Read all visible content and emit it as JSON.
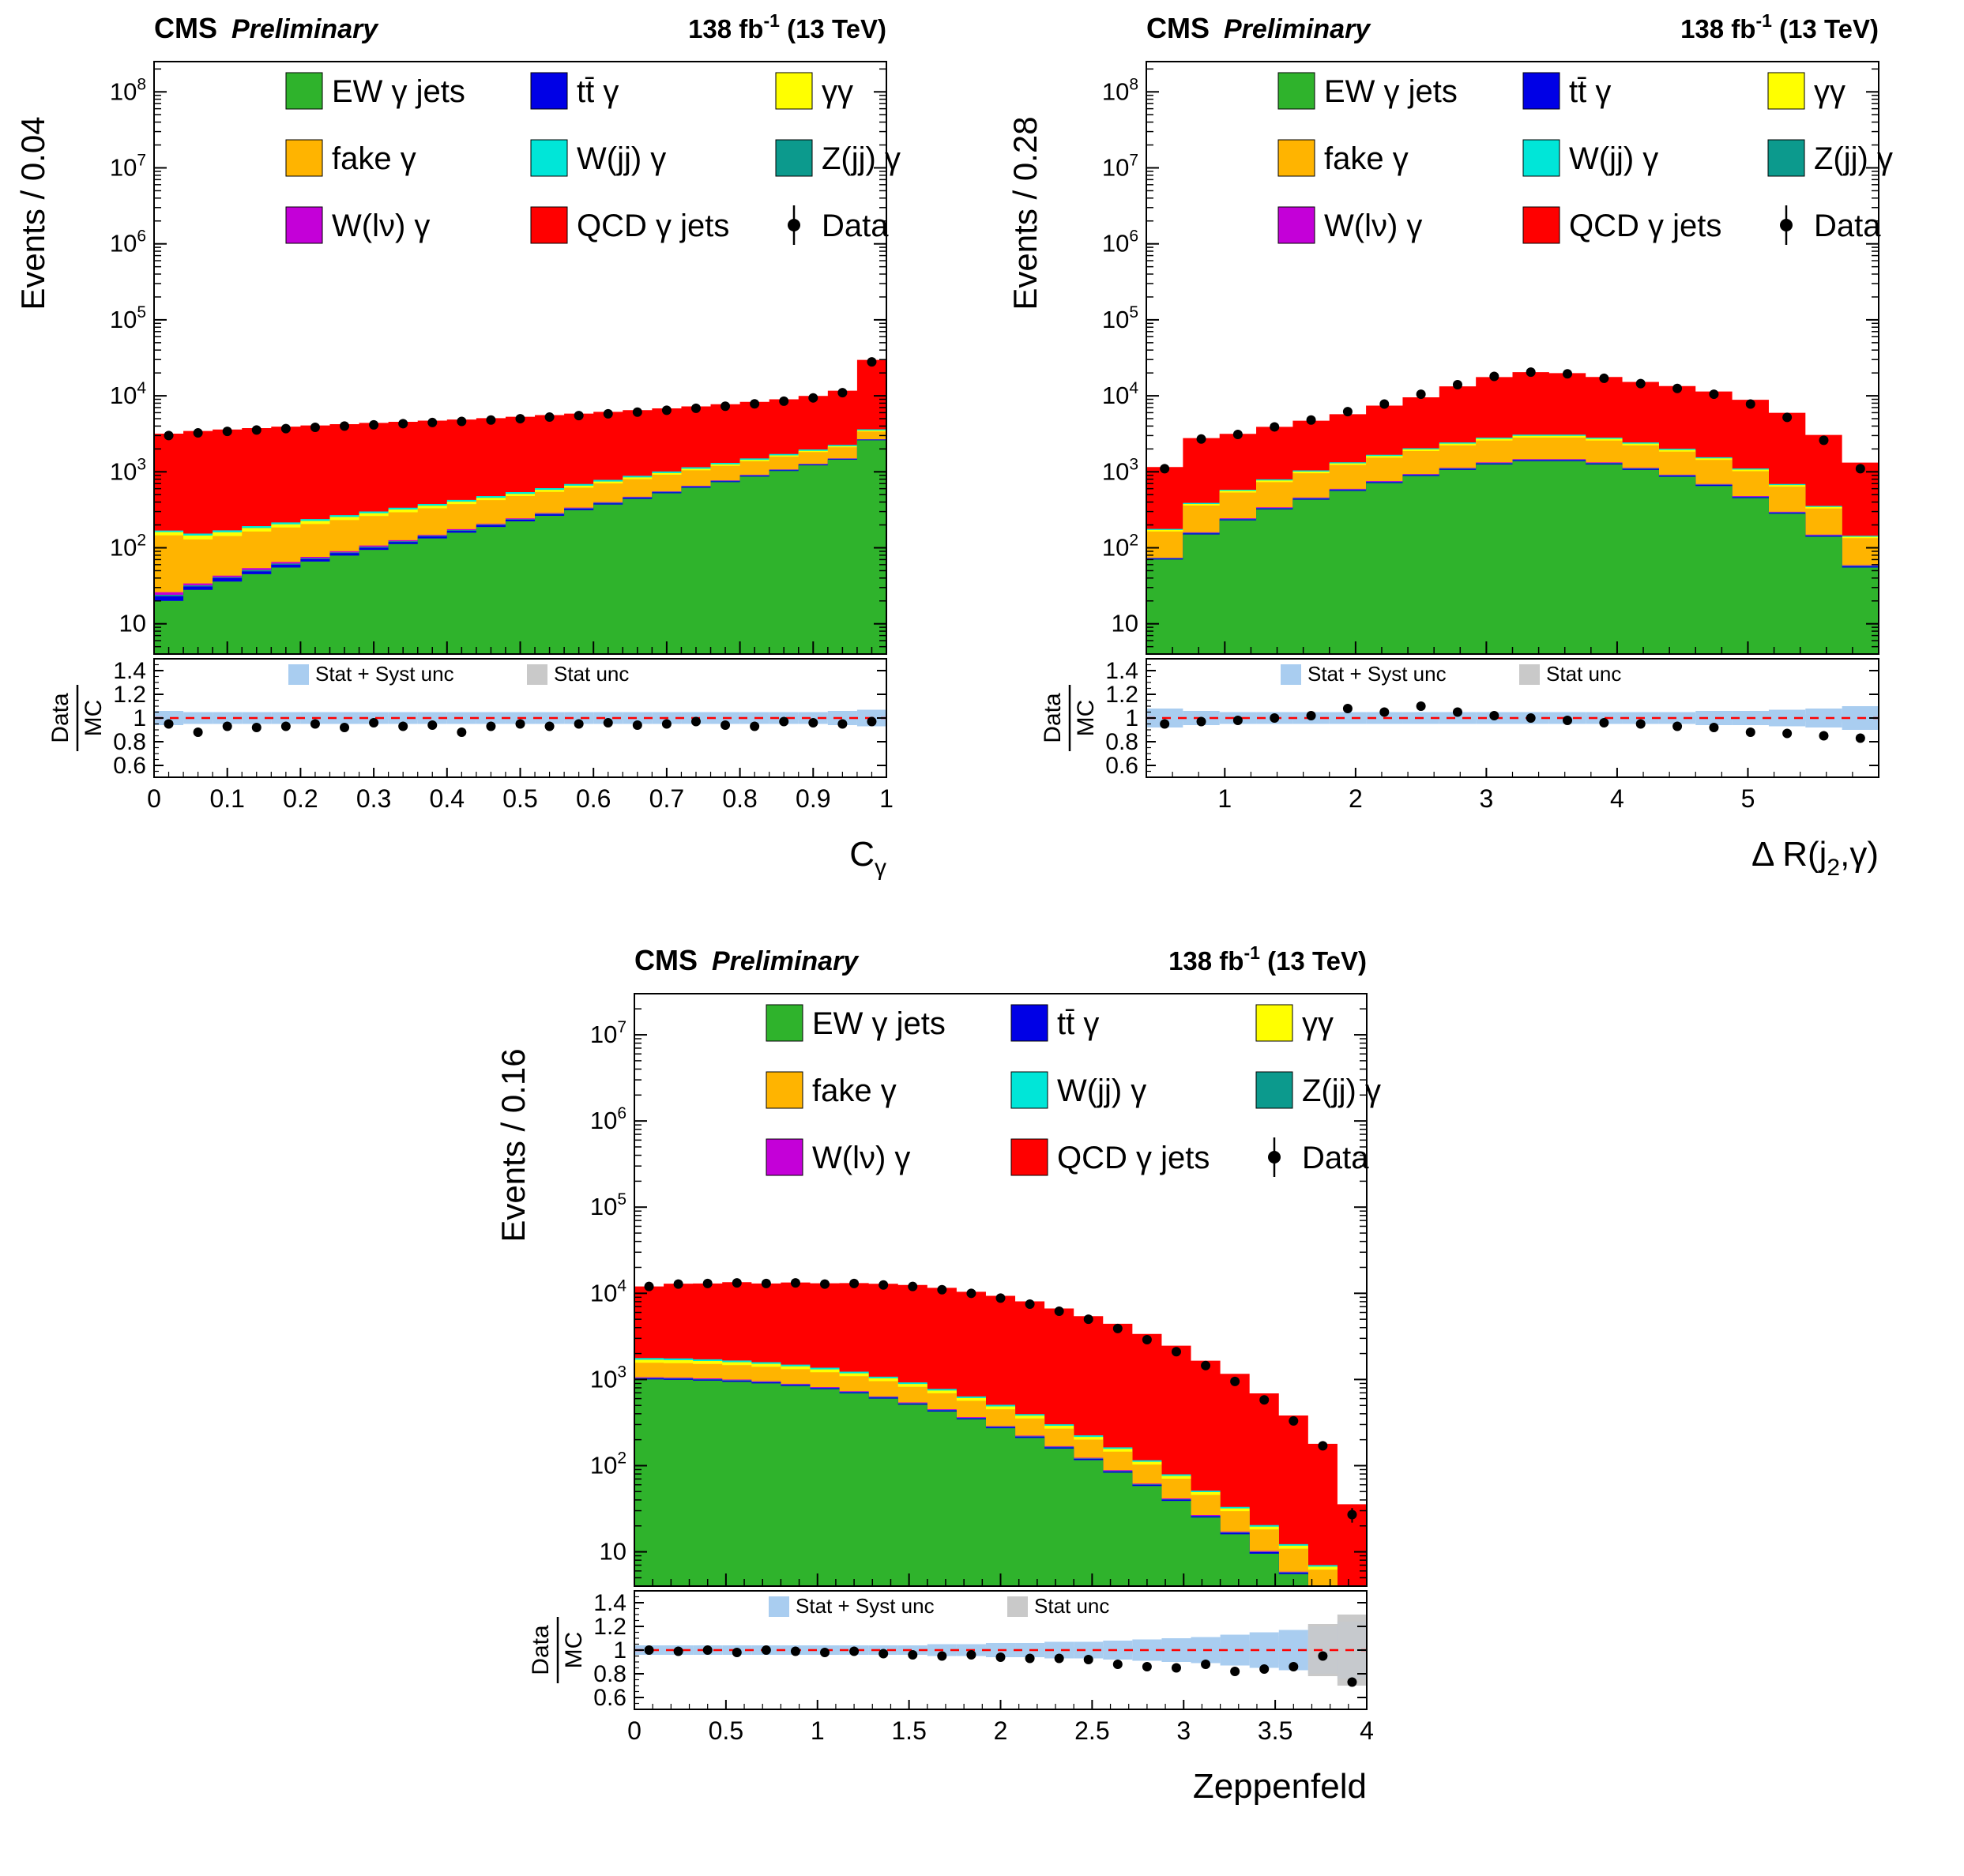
{
  "header": {
    "cms": "CMS",
    "preliminary": "Preliminary",
    "lumi_main": "138 fb",
    "lumi_sup": "-1",
    "lumi_tail": " (13 TeV)"
  },
  "legend": {
    "entries": [
      {
        "label": "EW γ jets",
        "color": "#2fb32c"
      },
      {
        "label": "tt̄ γ",
        "color": "#0000e6"
      },
      {
        "label": "γγ",
        "color": "#ffff00"
      },
      {
        "label": "fake γ",
        "color": "#ffb400"
      },
      {
        "label": "W(jj) γ",
        "color": "#00e6d8"
      },
      {
        "label": "Z(jj) γ",
        "color": "#0c9a8d"
      },
      {
        "label": "W(lν) γ",
        "color": "#c400d8"
      },
      {
        "label": "QCD γ jets",
        "color": "#ff0000"
      },
      {
        "label": "Data",
        "marker": "data"
      }
    ]
  },
  "ratio_legend": {
    "stat_syst_label": "Stat + Syst unc",
    "stat_syst_color": "#a9cdf0",
    "stat_label": "Stat unc",
    "stat_color": "#c9c9c9"
  },
  "ratio_ylabel": {
    "num": "Data",
    "den": "MC"
  },
  "chart_data": [
    {
      "id": "cgamma",
      "type": "bar",
      "ylabel": "Events / 0.04",
      "xlabel_parts": [
        {
          "t": "C",
          "sub": false
        },
        {
          "t": "γ",
          "sub": true
        }
      ],
      "x_min": 0,
      "x_max": 1,
      "n_bins": 25,
      "x_ticks": [
        0,
        0.1,
        0.2,
        0.3,
        0.4,
        0.5,
        0.6,
        0.7,
        0.8,
        0.9,
        1
      ],
      "x_tick_labels": [
        "0",
        "0.1",
        "0.2",
        "0.3",
        "0.4",
        "0.5",
        "0.6",
        "0.7",
        "0.8",
        "0.9",
        "1"
      ],
      "x_minor_step": 0.02,
      "y_min": 4,
      "y_max": 250000000,
      "ratio_range": [
        0.5,
        1.5
      ],
      "ratio_ticks": [
        0.6,
        0.8,
        1,
        1.2,
        1.4
      ],
      "series": [
        {
          "name": "EW γ jets",
          "color": "#2fb32c",
          "values": [
            20,
            28,
            36,
            45,
            55,
            66,
            79,
            94,
            112,
            133,
            158,
            188,
            223,
            264,
            313,
            371,
            440,
            521,
            617,
            731,
            866,
            1026,
            1216,
            1441,
            2600
          ]
        },
        {
          "name": "tt̄ γ",
          "color": "#0000e6",
          "values": [
            3,
            3,
            4,
            4,
            5,
            5,
            6,
            6,
            7,
            8,
            9,
            10,
            11,
            12,
            13,
            14,
            16,
            17,
            19,
            21,
            23,
            26,
            28,
            31,
            45
          ]
        },
        {
          "name": "Z(jj) γ",
          "color": "#0c9a8d",
          "values": [
            1,
            1,
            1,
            2,
            2,
            2,
            2,
            3,
            3,
            3,
            4,
            4,
            4,
            5,
            5,
            6,
            6,
            7,
            8,
            9,
            10,
            11,
            12,
            13,
            20
          ]
        },
        {
          "name": "W(lν) γ",
          "color": "#c400d8",
          "values": [
            2,
            2,
            2,
            3,
            3,
            3,
            3,
            4,
            4,
            4,
            5,
            5,
            6,
            6,
            7,
            8,
            8,
            9,
            10,
            11,
            13,
            14,
            16,
            17,
            25
          ]
        },
        {
          "name": "fake γ",
          "color": "#ffb400",
          "values": [
            120,
            95,
            100,
            110,
            120,
            130,
            142,
            155,
            168,
            183,
            200,
            217,
            236,
            257,
            280,
            305,
            331,
            361,
            392,
            427,
            464,
            505,
            550,
            598,
            700
          ]
        },
        {
          "name": "γγ",
          "color": "#ffff00",
          "values": [
            15,
            16,
            17,
            18,
            19,
            20,
            22,
            23,
            25,
            27,
            29,
            31,
            33,
            35,
            38,
            41,
            44,
            47,
            50,
            54,
            58,
            62,
            67,
            72,
            110
          ]
        },
        {
          "name": "W(jj) γ",
          "color": "#00e6d8",
          "values": [
            8,
            9,
            10,
            11,
            12,
            13,
            15,
            16,
            18,
            20,
            22,
            25,
            27,
            30,
            34,
            38,
            42,
            47,
            52,
            58,
            64,
            72,
            80,
            89,
            130
          ]
        },
        {
          "name": "QCD γ jets",
          "color": "#ff0000",
          "values": [
            3010,
            3290,
            3430,
            3570,
            3710,
            3840,
            3970,
            4100,
            4220,
            4340,
            4450,
            4610,
            4760,
            4960,
            5140,
            5370,
            5580,
            5830,
            6110,
            6430,
            6820,
            7290,
            8000,
            9400,
            26050
          ]
        }
      ],
      "data": [
        3000,
        3250,
        3400,
        3550,
        3700,
        3850,
        4000,
        4150,
        4300,
        4450,
        4600,
        4800,
        5000,
        5250,
        5500,
        5800,
        6100,
        6450,
        6850,
        7300,
        7850,
        8500,
        9400,
        11000,
        28000
      ],
      "ratio": [
        0.95,
        0.88,
        0.93,
        0.92,
        0.93,
        0.95,
        0.92,
        0.96,
        0.93,
        0.94,
        0.88,
        0.93,
        0.95,
        0.93,
        0.95,
        0.96,
        0.94,
        0.95,
        0.97,
        0.94,
        0.93,
        0.97,
        0.96,
        0.95,
        0.97
      ],
      "band_stat_syst": [
        0.06,
        0.05,
        0.05,
        0.05,
        0.05,
        0.05,
        0.05,
        0.05,
        0.05,
        0.05,
        0.05,
        0.05,
        0.05,
        0.05,
        0.05,
        0.05,
        0.05,
        0.05,
        0.05,
        0.05,
        0.05,
        0.05,
        0.05,
        0.06,
        0.07
      ],
      "band_stat": [
        0.02,
        0.02,
        0.02,
        0.02,
        0.02,
        0.02,
        0.02,
        0.02,
        0.02,
        0.02,
        0.02,
        0.02,
        0.02,
        0.02,
        0.02,
        0.02,
        0.02,
        0.02,
        0.02,
        0.02,
        0.02,
        0.02,
        0.02,
        0.02,
        0.03
      ]
    },
    {
      "id": "drj2gamma",
      "type": "bar",
      "ylabel": "Events / 0.28",
      "xlabel_parts": [
        {
          "t": "Δ R(j",
          "sub": false
        },
        {
          "t": "2",
          "sub": true
        },
        {
          "t": ",γ)",
          "sub": false
        }
      ],
      "x_min": 0.4,
      "x_max": 6,
      "n_bins": 20,
      "x_ticks": [
        1,
        2,
        3,
        4,
        5
      ],
      "x_tick_labels": [
        "1",
        "2",
        "3",
        "4",
        "5"
      ],
      "x_minor_step": 0.2,
      "y_min": 4,
      "y_max": 250000000,
      "ratio_range": [
        0.5,
        1.5
      ],
      "ratio_ticks": [
        0.6,
        0.8,
        1,
        1.2,
        1.4
      ],
      "series": [
        {
          "name": "EW γ jets",
          "color": "#2fb32c",
          "values": [
            70,
            150,
            230,
            320,
            430,
            560,
            710,
            880,
            1060,
            1250,
            1380,
            1380,
            1250,
            1060,
            860,
            650,
            450,
            280,
            140,
            55
          ]
        },
        {
          "name": "tt̄ γ",
          "color": "#0000e6",
          "values": [
            2,
            5,
            7,
            10,
            13,
            17,
            21,
            26,
            32,
            38,
            41,
            41,
            38,
            32,
            26,
            20,
            14,
            8,
            4,
            2
          ]
        },
        {
          "name": "Z(jj) γ",
          "color": "#0c9a8d",
          "values": [
            1,
            2,
            3,
            4,
            6,
            8,
            10,
            12,
            15,
            17,
            19,
            19,
            17,
            15,
            12,
            9,
            6,
            4,
            2,
            1
          ]
        },
        {
          "name": "W(lν) γ",
          "color": "#c400d8",
          "values": [
            1,
            3,
            5,
            7,
            9,
            12,
            15,
            18,
            22,
            26,
            29,
            29,
            26,
            22,
            18,
            13,
            9,
            6,
            3,
            1
          ]
        },
        {
          "name": "fake γ",
          "color": "#ffb400",
          "values": [
            90,
            200,
            290,
            390,
            500,
            630,
            780,
            940,
            1100,
            1250,
            1350,
            1350,
            1250,
            1100,
            930,
            740,
            540,
            340,
            180,
            75
          ]
        },
        {
          "name": "γγ",
          "color": "#ffff00",
          "values": [
            8,
            18,
            28,
            38,
            50,
            64,
            80,
            98,
            118,
            138,
            152,
            152,
            138,
            118,
            96,
            72,
            50,
            31,
            16,
            6
          ]
        },
        {
          "name": "W(jj) γ",
          "color": "#00e6d8",
          "values": [
            5,
            12,
            18,
            26,
            35,
            45,
            57,
            70,
            85,
            100,
            110,
            110,
            100,
            85,
            69,
            52,
            36,
            22,
            11,
            4
          ]
        },
        {
          "name": "QCD γ jets",
          "color": "#ff0000",
          "values": [
            980,
            2390,
            2580,
            3110,
            3660,
            4400,
            5760,
            7500,
            10900,
            14830,
            17420,
            16820,
            14890,
            12830,
            11430,
            9860,
            7760,
            5290,
            2700,
            1180
          ]
        }
      ],
      "data": [
        1100,
        2700,
        3100,
        3900,
        4800,
        6200,
        7800,
        10500,
        14000,
        18000,
        20500,
        19500,
        17000,
        14500,
        12500,
        10500,
        7800,
        5200,
        2600,
        1100
      ],
      "ratio": [
        0.95,
        0.97,
        0.98,
        1.0,
        1.02,
        1.08,
        1.05,
        1.1,
        1.05,
        1.02,
        1.0,
        0.98,
        0.96,
        0.95,
        0.93,
        0.92,
        0.88,
        0.87,
        0.85,
        0.83
      ],
      "band_stat_syst": [
        0.08,
        0.06,
        0.05,
        0.05,
        0.05,
        0.05,
        0.05,
        0.05,
        0.05,
        0.05,
        0.05,
        0.05,
        0.05,
        0.05,
        0.05,
        0.06,
        0.06,
        0.07,
        0.08,
        0.1
      ],
      "band_stat": [
        0.03,
        0.02,
        0.02,
        0.02,
        0.02,
        0.02,
        0.02,
        0.02,
        0.02,
        0.02,
        0.02,
        0.02,
        0.02,
        0.02,
        0.02,
        0.02,
        0.02,
        0.03,
        0.03,
        0.04
      ]
    },
    {
      "id": "zeppenfeld",
      "type": "bar",
      "ylabel": "Events / 0.16",
      "xlabel_parts": [
        {
          "t": "Zeppenfeld",
          "sub": false
        }
      ],
      "x_min": 0,
      "x_max": 4,
      "n_bins": 25,
      "x_ticks": [
        0,
        0.5,
        1,
        1.5,
        2,
        2.5,
        3,
        3.5,
        4
      ],
      "x_tick_labels": [
        "0",
        "0.5",
        "1",
        "1.5",
        "2",
        "2.5",
        "3",
        "3.5",
        "4"
      ],
      "x_minor_step": 0.1,
      "y_min": 4,
      "y_max": 30000000,
      "ratio_range": [
        0.5,
        1.5
      ],
      "ratio_ticks": [
        0.6,
        0.8,
        1,
        1.2,
        1.4
      ],
      "series": [
        {
          "name": "EW γ jets",
          "color": "#2fb32c",
          "values": [
            1000,
            990,
            970,
            940,
            900,
            840,
            770,
            690,
            600,
            510,
            425,
            345,
            272,
            210,
            158,
            116,
            83,
            58,
            39,
            25,
            16,
            9.5,
            5.5,
            3,
            1.5
          ]
        },
        {
          "name": "tt̄ γ",
          "color": "#0000e6",
          "values": [
            30,
            30,
            29,
            28,
            27,
            25,
            23,
            21,
            18,
            15,
            13,
            10,
            8,
            6.5,
            5,
            3.7,
            2.7,
            1.9,
            1.3,
            0.9,
            0.6,
            0.4,
            0.2,
            0.1,
            0.05
          ]
        },
        {
          "name": "Z(jj) γ",
          "color": "#0c9a8d",
          "values": [
            12,
            12,
            11,
            11,
            10,
            10,
            9,
            8,
            7,
            6,
            5,
            4,
            3.3,
            2.6,
            2,
            1.5,
            1.1,
            0.8,
            0.5,
            0.3,
            0.2,
            0.1,
            0.08,
            0.05,
            0.03
          ]
        },
        {
          "name": "W(lν) γ",
          "color": "#c400d8",
          "values": [
            20,
            20,
            19,
            18,
            17,
            16,
            15,
            13,
            11,
            10,
            8,
            6.5,
            5,
            4,
            3,
            2.3,
            1.7,
            1.2,
            0.8,
            0.5,
            0.3,
            0.2,
            0.1,
            0.07,
            0.03
          ]
        },
        {
          "name": "fake γ",
          "color": "#ffb400",
          "values": [
            500,
            495,
            485,
            470,
            450,
            425,
            395,
            360,
            320,
            280,
            240,
            200,
            163,
            130,
            101,
            77,
            57,
            41,
            29,
            19,
            12.5,
            8,
            5,
            3,
            1.6
          ]
        },
        {
          "name": "γγ",
          "color": "#ffff00",
          "values": [
            130,
            128,
            125,
            120,
            114,
            106,
            97,
            87,
            76,
            65,
            54,
            44,
            35,
            27,
            21,
            15,
            11,
            8,
            5.5,
            3.6,
            2.3,
            1.4,
            0.9,
            0.5,
            0.25
          ]
        },
        {
          "name": "W(jj) γ",
          "color": "#00e6d8",
          "values": [
            80,
            79,
            77,
            74,
            70,
            65,
            59,
            53,
            46,
            39,
            32,
            26,
            21,
            16,
            12,
            9,
            6.5,
            4.6,
            3.1,
            2,
            1.3,
            0.8,
            0.5,
            0.3,
            0.15
          ]
        },
        {
          "name": "QCD γ jets",
          "color": "#ff0000",
          "values": [
            10230,
            11180,
            11280,
            11810,
            11410,
            11850,
            11690,
            11900,
            11810,
            11580,
            10800,
            9780,
            8850,
            7670,
            6360,
            5210,
            4270,
            3260,
            2390,
            1600,
            1130,
            670,
            370,
            172,
            32
          ]
        }
      ],
      "data": [
        12000,
        12800,
        13000,
        13200,
        13000,
        13200,
        12800,
        13000,
        12500,
        12000,
        11000,
        10000,
        8800,
        7500,
        6200,
        5000,
        3900,
        2900,
        2100,
        1450,
        950,
        580,
        330,
        170,
        27
      ],
      "ratio": [
        1.0,
        0.99,
        1.0,
        0.98,
        1.0,
        0.99,
        0.98,
        0.99,
        0.97,
        0.96,
        0.95,
        0.96,
        0.94,
        0.93,
        0.93,
        0.92,
        0.88,
        0.86,
        0.85,
        0.88,
        0.82,
        0.84,
        0.86,
        0.95,
        0.73
      ],
      "band_stat_syst": [
        0.04,
        0.04,
        0.04,
        0.04,
        0.04,
        0.04,
        0.04,
        0.04,
        0.04,
        0.04,
        0.05,
        0.05,
        0.06,
        0.06,
        0.07,
        0.07,
        0.08,
        0.09,
        0.1,
        0.11,
        0.13,
        0.15,
        0.17,
        0.2,
        0.24
      ],
      "band_stat": [
        0.015,
        0.015,
        0.015,
        0.015,
        0.015,
        0.015,
        0.015,
        0.015,
        0.015,
        0.015,
        0.02,
        0.02,
        0.02,
        0.02,
        0.025,
        0.025,
        0.03,
        0.035,
        0.04,
        0.05,
        0.06,
        0.08,
        0.12,
        0.22,
        0.3
      ]
    }
  ]
}
